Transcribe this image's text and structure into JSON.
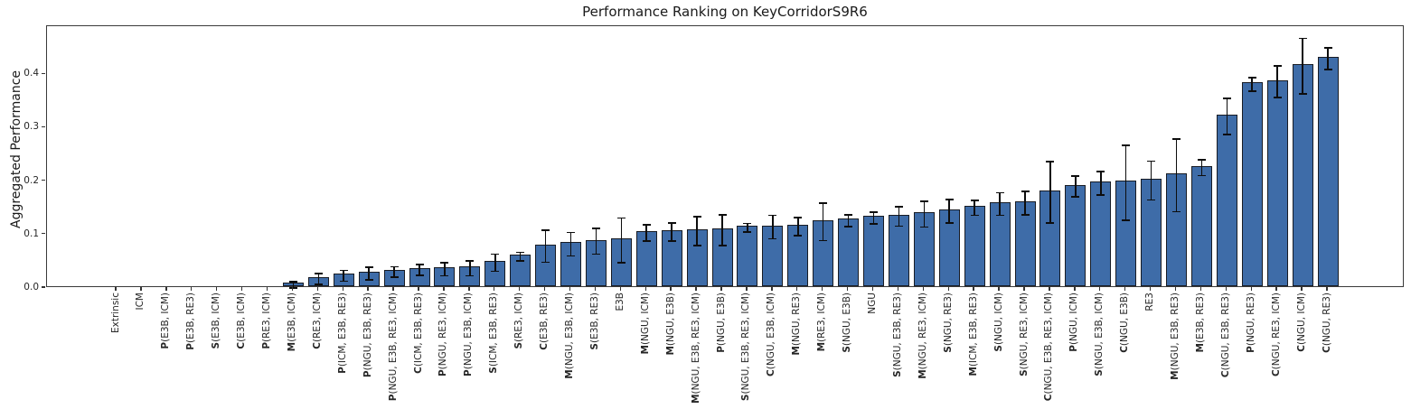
{
  "chart_data": {
    "type": "bar",
    "title": "Performance Ranking on KeyCorridorS9R6",
    "ylabel": "Aggregated Performance",
    "xlabel": "",
    "ylim": [
      0,
      0.49
    ],
    "yticks": [
      "0.0",
      "0.1",
      "0.2",
      "0.3",
      "0.4"
    ],
    "grid": false,
    "legend": "none",
    "bar_color": "#3E6CA8",
    "bar_edge_color": "#181c24",
    "error_bar_color": "#0d0d0d",
    "categories": [
      "Extrinsic",
      "ICM",
      "P(E3B, ICM)",
      "P(E3B, RE3)",
      "S(E3B, ICM)",
      "C(E3B, ICM)",
      "P(RE3, ICM)",
      "M(E3B, ICM)",
      "C(RE3, ICM)",
      "P(ICM, E3B, RE3)",
      "P(NGU, E3B, RE3)",
      "P(NGU, E3B, RE3, ICM)",
      "C(ICM, E3B, RE3)",
      "P(NGU, RE3, ICM)",
      "P(NGU, E3B, ICM)",
      "S(ICM, E3B, RE3)",
      "S(RE3, ICM)",
      "C(E3B, RE3)",
      "M(NGU, E3B, ICM)",
      "S(E3B, RE3)",
      "E3B",
      "M(NGU, ICM)",
      "M(NGU, E3B)",
      "M(NGU, E3B, RE3, ICM)",
      "P(NGU, E3B)",
      "S(NGU, E3B, RE3, ICM)",
      "C(NGU, E3B, ICM)",
      "M(NGU, RE3)",
      "M(RE3, ICM)",
      "S(NGU, E3B)",
      "NGU",
      "S(NGU, E3B, RE3)",
      "M(NGU, RE3, ICM)",
      "S(NGU, RE3)",
      "M(ICM, E3B, RE3)",
      "S(NGU, ICM)",
      "S(NGU, RE3, ICM)",
      "C(NGU, E3B, RE3, ICM)",
      "P(NGU, ICM)",
      "S(NGU, E3B, ICM)",
      "C(NGU, E3B)",
      "RE3",
      "M(NGU, E3B, RE3)",
      "M(E3B, RE3)",
      "C(NGU, E3B, RE3)",
      "P(NGU, RE3)",
      "C(NGU, RE3, ICM)",
      "C(NGU, ICM)",
      "C(NGU, RE3)"
    ],
    "values": [
      0.0,
      0.0,
      0.001,
      0.001,
      0.001,
      0.001,
      0.001,
      0.006,
      0.017,
      0.023,
      0.027,
      0.03,
      0.034,
      0.035,
      0.037,
      0.047,
      0.059,
      0.078,
      0.082,
      0.087,
      0.089,
      0.103,
      0.105,
      0.106,
      0.108,
      0.113,
      0.114,
      0.115,
      0.124,
      0.126,
      0.131,
      0.134,
      0.138,
      0.144,
      0.15,
      0.157,
      0.159,
      0.179,
      0.19,
      0.196,
      0.197,
      0.201,
      0.211,
      0.225,
      0.321,
      0.381,
      0.386,
      0.415,
      0.429
    ],
    "errors": [
      0.0,
      0.0,
      0.0,
      0.0,
      0.0,
      0.0,
      0.0,
      0.006,
      0.01,
      0.01,
      0.012,
      0.01,
      0.01,
      0.012,
      0.014,
      0.016,
      0.008,
      0.03,
      0.022,
      0.024,
      0.042,
      0.015,
      0.017,
      0.027,
      0.029,
      0.008,
      0.022,
      0.017,
      0.035,
      0.011,
      0.011,
      0.018,
      0.024,
      0.022,
      0.014,
      0.021,
      0.022,
      0.057,
      0.019,
      0.022,
      0.07,
      0.036,
      0.068,
      0.015,
      0.034,
      0.013,
      0.03,
      0.052,
      0.02
    ]
  }
}
